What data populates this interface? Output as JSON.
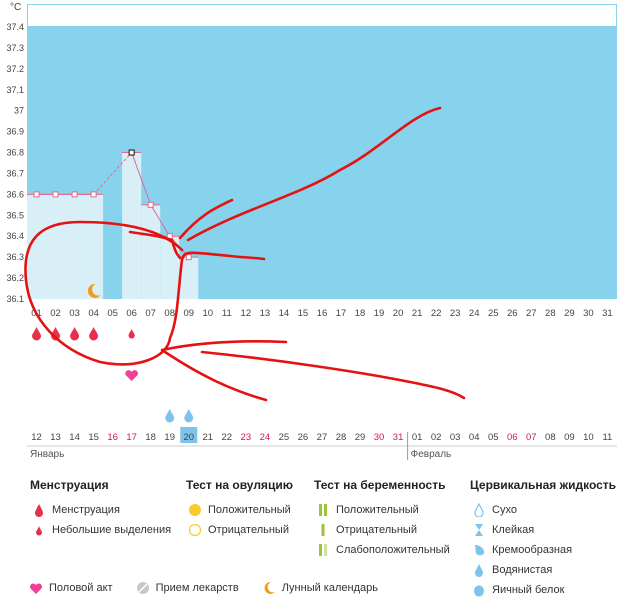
{
  "chart_data": {
    "type": "line",
    "ylabel": "°C",
    "ylim": [
      36.1,
      37.4
    ],
    "yticks": [
      "36.1",
      "36.2",
      "36.3",
      "36.4",
      "36.5",
      "36.6",
      "36.7",
      "36.8",
      "36.9",
      "37",
      "37.1",
      "37.2",
      "37.3",
      "37.4"
    ],
    "x_top": [
      "01",
      "02",
      "03",
      "04",
      "05",
      "06",
      "07",
      "08",
      "09",
      "10",
      "11",
      "12",
      "13",
      "14",
      "15",
      "16",
      "17",
      "18",
      "19",
      "20",
      "21",
      "22",
      "23",
      "24",
      "25",
      "26",
      "27",
      "28",
      "29",
      "30",
      "31"
    ],
    "x_bottom": [
      "12",
      "13",
      "14",
      "15",
      "16",
      "17",
      "18",
      "19",
      "20",
      "21",
      "22",
      "23",
      "24",
      "25",
      "26",
      "27",
      "28",
      "29",
      "30",
      "31",
      "01",
      "02",
      "03",
      "04",
      "05",
      "06",
      "07",
      "08",
      "09",
      "10",
      "11"
    ],
    "x_bottom_red": [
      4,
      5,
      11,
      12,
      18,
      19,
      25,
      26
    ],
    "x_bottom_highlight": 8,
    "month_labels": [
      "Январь",
      "Февраль"
    ],
    "temperatures": [
      36.6,
      36.6,
      36.6,
      36.6,
      null,
      36.8,
      36.55,
      36.4,
      36.3
    ],
    "menstruation_days": [
      0,
      1,
      2,
      3
    ],
    "light_spotting_days": [
      5
    ],
    "intercourse_days": [
      5
    ],
    "lunar_days": [
      3
    ],
    "watery_days": [
      7,
      8
    ]
  },
  "legend": {
    "menstruation": {
      "title": "Менструация",
      "items": [
        "Менструация",
        "Небольшие выделения"
      ]
    },
    "ovulation": {
      "title": "Тест на овуляцию",
      "items": [
        "Положительный",
        "Отрицательный"
      ]
    },
    "pregnancy": {
      "title": "Тест на беременность",
      "items": [
        "Положительный",
        "Отрицательный",
        "Слабоположительный"
      ]
    },
    "cervical": {
      "title": "Цервикальная жидкость",
      "items": [
        "Сухо",
        "Клейкая",
        "Кремообразная",
        "Водянистая",
        "Яичный белок"
      ]
    }
  },
  "bottom": [
    "Половой акт",
    "Прием лекарств",
    "Лунный календарь"
  ],
  "colors": {
    "plot_bg": "#87d3ee",
    "bar_fill": "#d8eff8",
    "line": "#e06b8b",
    "red": "#e8304c",
    "water": "#7ec3ea"
  }
}
